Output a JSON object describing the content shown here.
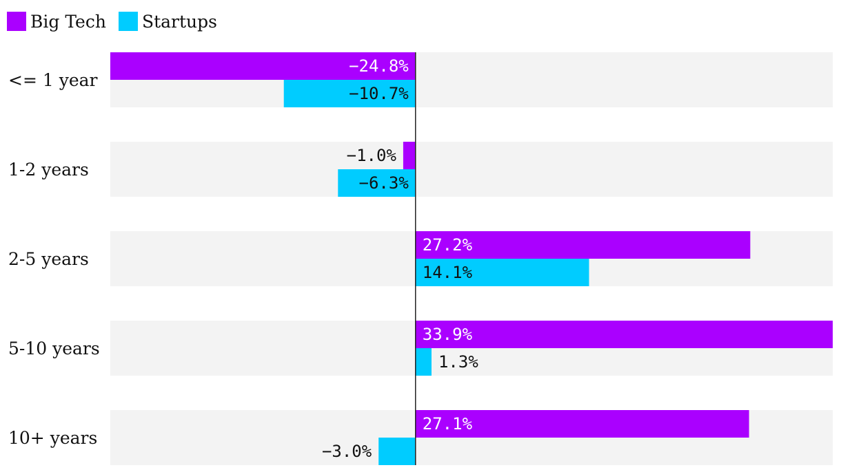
{
  "chart_data": {
    "type": "bar",
    "orientation": "horizontal",
    "categories": [
      "<= 1 year",
      "1-2 years",
      "2-5 years",
      "5-10 years",
      "10+ years"
    ],
    "series": [
      {
        "name": "Big Tech",
        "color": "#aa00ff",
        "values": [
          -24.8,
          -1.0,
          27.2,
          33.9,
          27.1
        ],
        "labels": [
          "−24.8%",
          "−1.0%",
          "27.2%",
          "33.9%",
          "27.1%"
        ]
      },
      {
        "name": "Startups",
        "color": "#00ccff",
        "values": [
          -10.7,
          -6.3,
          14.1,
          1.3,
          -3.0
        ],
        "labels": [
          "−10.7%",
          "−6.3%",
          "14.1%",
          "1.3%",
          "−3.0%"
        ]
      }
    ],
    "xlim": [
      -24.8,
      33.9
    ],
    "legend_position": "top-left",
    "grid": false,
    "row_background": "#f3f3f3"
  }
}
